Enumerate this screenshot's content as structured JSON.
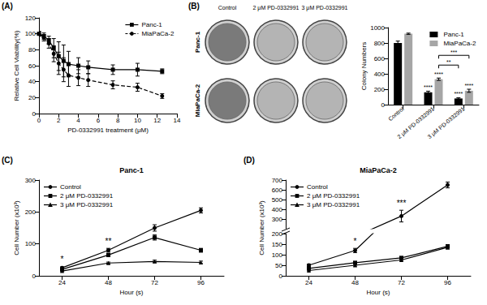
{
  "chart_data": [
    {
      "panel": "(A)",
      "type": "line",
      "x_label": "PD-0332991 treatment (μM)",
      "y_label": "Relative Cell Viability(%)",
      "x": [
        0,
        0.5,
        1,
        1.5,
        2,
        2.5,
        3,
        4,
        5,
        7.5,
        10,
        12.5
      ],
      "series": [
        {
          "name": "Panc-1",
          "color": "#000000",
          "marker": "square",
          "line_style": "solid",
          "values": [
            100,
            97,
            92,
            82,
            72,
            66,
            62,
            60,
            58,
            55,
            55,
            53
          ],
          "errors": [
            3,
            4,
            5,
            12,
            18,
            20,
            16,
            10,
            8,
            6,
            8,
            3
          ]
        },
        {
          "name": "MiaPaCa-2",
          "color": "#000000",
          "marker": "circle",
          "line_style": "dashed",
          "values": [
            100,
            95,
            88,
            75,
            63,
            55,
            48,
            45,
            42,
            36,
            33,
            22
          ],
          "errors": [
            3,
            4,
            6,
            10,
            14,
            15,
            14,
            10,
            8,
            5,
            5,
            3
          ]
        }
      ],
      "xlim": [
        0,
        14
      ],
      "xticks": [
        0,
        2,
        4,
        6,
        8,
        10,
        12,
        14
      ],
      "ylim": [
        0,
        120
      ],
      "yticks": [
        0,
        20,
        40,
        60,
        80,
        100,
        120
      ],
      "grid": false,
      "legend": "upper right"
    },
    {
      "panel": "(B)",
      "type": "bar",
      "y_label": "Colony Numbers",
      "categories": [
        "Control",
        "2 μM PD-0332991",
        "3 μM PD-0332991"
      ],
      "series": [
        {
          "name": "Panc-1",
          "color": "#000000",
          "values": [
            800,
            160,
            80
          ],
          "errors": [
            25,
            15,
            10
          ]
        },
        {
          "name": "MiaPaCa-2",
          "color": "#a6a6a6",
          "values": [
            920,
            330,
            180
          ],
          "errors": [
            8,
            15,
            20
          ]
        }
      ],
      "ylim": [
        0,
        1000
      ],
      "yticks": [
        0,
        200,
        400,
        600,
        800,
        1000
      ],
      "grid": false,
      "legend": "upper right",
      "annotations": [
        {
          "text": "****",
          "category": "2 μM PD-0332991",
          "series": "Panc-1"
        },
        {
          "text": "****",
          "category": "2 μM PD-0332991",
          "series": "MiaPaCa-2"
        },
        {
          "text": "****",
          "category": "3 μM PD-0332991",
          "series": "Panc-1"
        },
        {
          "text": "****",
          "category": "3 μM PD-0332991",
          "series": "MiaPaCa-2"
        },
        {
          "text": "**",
          "from": {
            "category": "2 μM PD-0332991",
            "series": "MiaPaCa-2"
          },
          "to": {
            "category": "3 μM PD-0332991",
            "series": "Panc-1"
          }
        },
        {
          "text": "***",
          "from": {
            "category": "2 μM PD-0332991",
            "series": "MiaPaCa-2"
          },
          "to": {
            "category": "3 μM PD-0332991",
            "series": "MiaPaCa-2"
          }
        }
      ],
      "plates": {
        "columns": [
          "Control",
          "2 μM PD-0332991",
          "3 μM PD-0332991"
        ],
        "rows": [
          "Panc-1",
          "MiaPaCa-2"
        ]
      }
    },
    {
      "panel": "(C)",
      "title": "Panc-1",
      "type": "line",
      "x_label": "Hour (s)",
      "y_label": "Cell Number (x10³)",
      "categories": [
        "24",
        "48",
        "72",
        "96"
      ],
      "series": [
        {
          "name": "Control",
          "color": "#000000",
          "marker": "circle",
          "values": [
            25,
            80,
            150,
            205
          ],
          "errors": [
            3,
            6,
            10,
            8
          ]
        },
        {
          "name": "2 μM PD-0332991",
          "color": "#000000",
          "marker": "square",
          "values": [
            20,
            65,
            120,
            80
          ],
          "errors": [
            2,
            5,
            8,
            6
          ]
        },
        {
          "name": "3 μM PD-0332991",
          "color": "#000000",
          "marker": "triangle",
          "values": [
            15,
            40,
            45,
            42
          ],
          "errors": [
            2,
            3,
            4,
            4
          ]
        }
      ],
      "ylim": [
        0,
        300
      ],
      "yticks": [
        0,
        100,
        200,
        300
      ],
      "grid": false,
      "legend": "upper left",
      "annotations": [
        {
          "text": "*",
          "category": "24"
        },
        {
          "text": "**",
          "category": "48"
        }
      ]
    },
    {
      "panel": "(D)",
      "title": "MiaPaCa-2",
      "type": "line",
      "x_label": "Hour (s)",
      "y_label": "Cell Number (x10³)",
      "categories": [
        "24",
        "48",
        "72",
        "96"
      ],
      "series": [
        {
          "name": "Control",
          "color": "#000000",
          "marker": "circle",
          "values": [
            50,
            120,
            330,
            650
          ],
          "errors": [
            5,
            10,
            60,
            30
          ]
        },
        {
          "name": "2 μM PD-0332991",
          "color": "#000000",
          "marker": "square",
          "values": [
            35,
            62,
            85,
            140
          ],
          "errors": [
            3,
            5,
            6,
            8
          ]
        },
        {
          "name": "3 μM PD-0332991",
          "color": "#000000",
          "marker": "triangle",
          "values": [
            25,
            50,
            75,
            135
          ],
          "errors": [
            2,
            4,
            5,
            8
          ]
        }
      ],
      "ylim": [
        0,
        700
      ],
      "yticks": [
        0,
        50,
        100,
        150,
        200,
        300,
        400,
        500,
        600,
        700
      ],
      "grid": false,
      "legend": "upper left",
      "annotations": [
        {
          "text": "*",
          "category": "48"
        },
        {
          "text": "***",
          "category": "72"
        }
      ]
    }
  ]
}
